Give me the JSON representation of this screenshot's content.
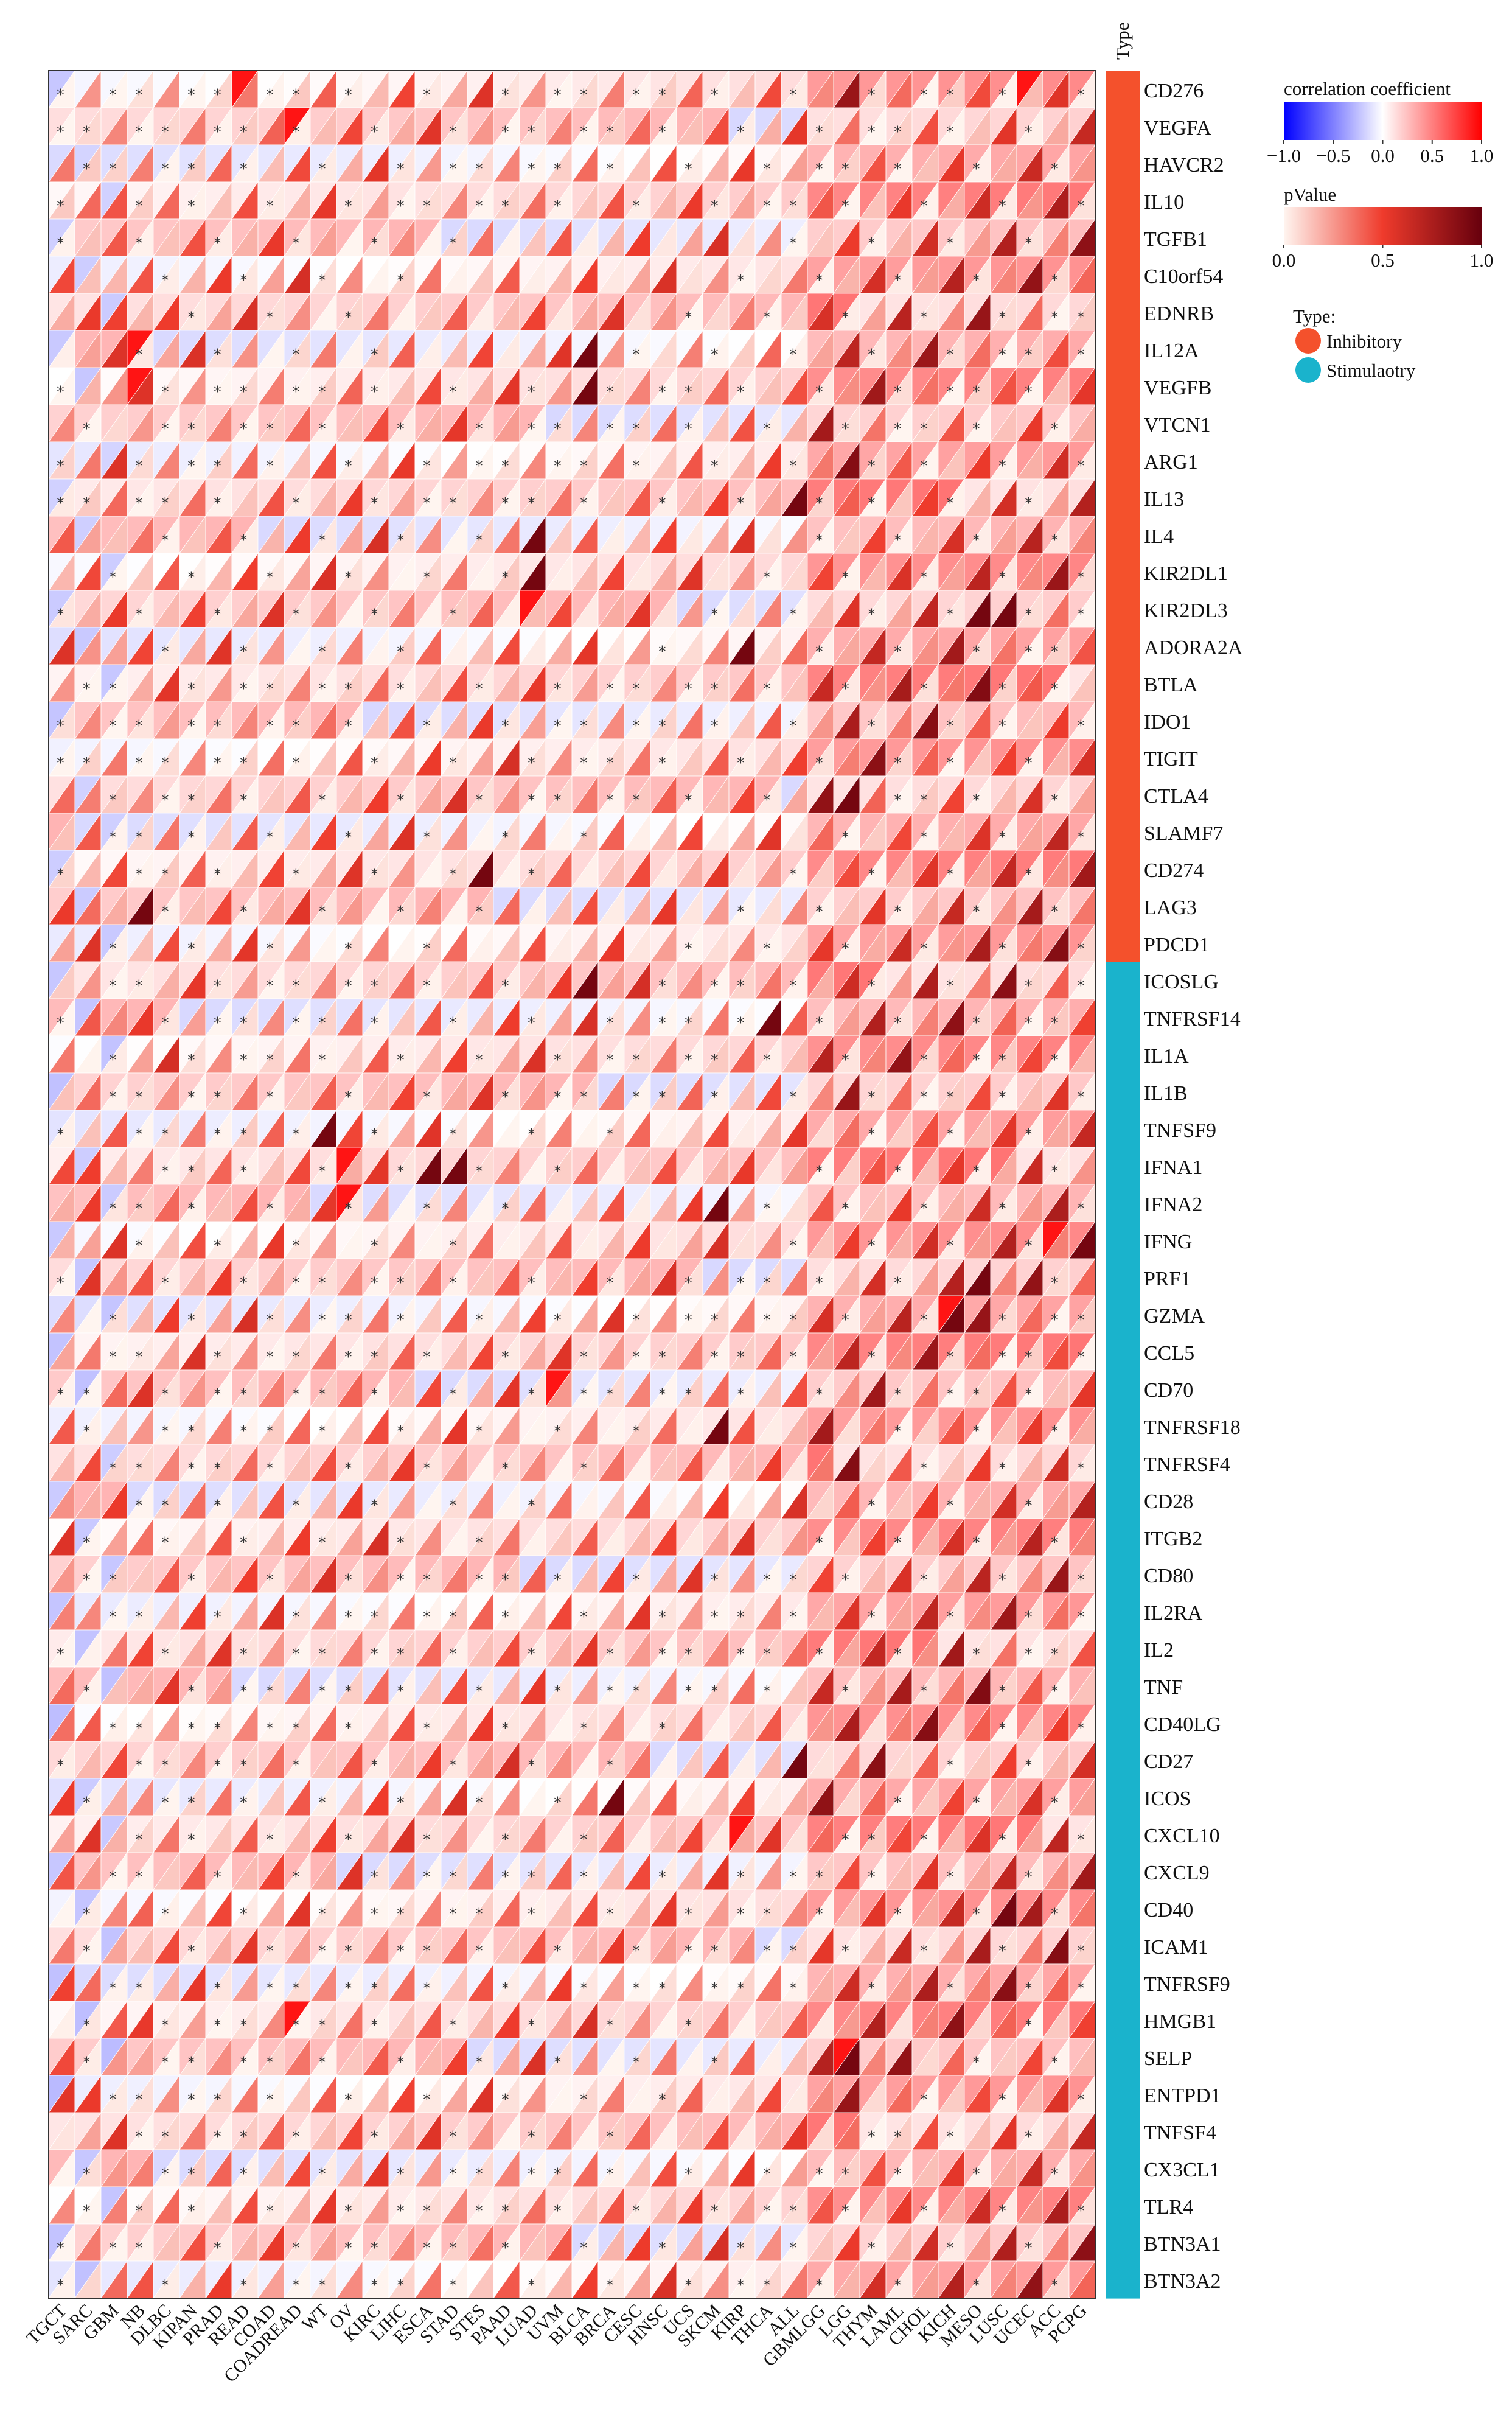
{
  "chart_data": {
    "type": "heatmap",
    "subtype": "split-triangle correlation heatmap",
    "rows": [
      "CD276",
      "VEGFA",
      "HAVCR2",
      "IL10",
      "TGFB1",
      "C10orf54",
      "EDNRB",
      "IL12A",
      "VEGFB",
      "VTCN1",
      "ARG1",
      "IL13",
      "IL4",
      "KIR2DL1",
      "KIR2DL3",
      "ADORA2A",
      "BTLA",
      "IDO1",
      "TIGIT",
      "CTLA4",
      "SLAMF7",
      "CD274",
      "LAG3",
      "PDCD1",
      "ICOSLG",
      "TNFRSF14",
      "IL1A",
      "IL1B",
      "TNFSF9",
      "IFNA1",
      "IFNA2",
      "IFNG",
      "PRF1",
      "GZMA",
      "CCL5",
      "CD70",
      "TNFRSF18",
      "TNFRSF4",
      "CD28",
      "ITGB2",
      "CD80",
      "IL2RA",
      "IL2",
      "TNF",
      "CD40LG",
      "CD27",
      "ICOS",
      "CXCL10",
      "CXCL9",
      "CD40",
      "ICAM1",
      "TNFRSF9",
      "HMGB1",
      "SELP",
      "ENTPD1",
      "TNFSF4",
      "CX3CL1",
      "TLR4",
      "BTN3A1",
      "BTN3A2"
    ],
    "row_types": [
      "Inhibitory",
      "Inhibitory",
      "Inhibitory",
      "Inhibitory",
      "Inhibitory",
      "Inhibitory",
      "Inhibitory",
      "Inhibitory",
      "Inhibitory",
      "Inhibitory",
      "Inhibitory",
      "Inhibitory",
      "Inhibitory",
      "Inhibitory",
      "Inhibitory",
      "Inhibitory",
      "Inhibitory",
      "Inhibitory",
      "Inhibitory",
      "Inhibitory",
      "Inhibitory",
      "Inhibitory",
      "Inhibitory",
      "Inhibitory",
      "Stimulaotry",
      "Stimulaotry",
      "Stimulaotry",
      "Stimulaotry",
      "Stimulaotry",
      "Stimulaotry",
      "Stimulaotry",
      "Stimulaotry",
      "Stimulaotry",
      "Stimulaotry",
      "Stimulaotry",
      "Stimulaotry",
      "Stimulaotry",
      "Stimulaotry",
      "Stimulaotry",
      "Stimulaotry",
      "Stimulaotry",
      "Stimulaotry",
      "Stimulaotry",
      "Stimulaotry",
      "Stimulaotry",
      "Stimulaotry",
      "Stimulaotry",
      "Stimulaotry",
      "Stimulaotry",
      "Stimulaotry",
      "Stimulaotry",
      "Stimulaotry",
      "Stimulaotry",
      "Stimulaotry",
      "Stimulaotry",
      "Stimulaotry",
      "Stimulaotry",
      "Stimulaotry",
      "Stimulaotry",
      "Stimulaotry"
    ],
    "columns": [
      "TGCT",
      "SARC",
      "GBM",
      "NB",
      "DLBC",
      "KIPAN",
      "PRAD",
      "READ",
      "COAD",
      "COADREAD",
      "WT",
      "OV",
      "KIRC",
      "LIHC",
      "ESCA",
      "STAD",
      "STES",
      "PAAD",
      "LUAD",
      "UVM",
      "BLCA",
      "BRCA",
      "CESC",
      "HNSC",
      "UCS",
      "SKCM",
      "KIRP",
      "THCA",
      "ALL",
      "GBMLGG",
      "LGG",
      "THYM",
      "LAML",
      "CHOL",
      "KICH",
      "MESO",
      "LUSC",
      "UCEC",
      "ACC",
      "PCPG"
    ],
    "type_header": "Type",
    "legend_correlation": {
      "title": "correlation coefficient",
      "ticks": [
        "−1.0",
        "−0.5",
        "0.0",
        "0.5",
        "1.0"
      ],
      "colors": [
        "#0000ff",
        "#ffffff",
        "#ff0000"
      ],
      "range": [
        -1,
        1
      ]
    },
    "legend_pvalue": {
      "title": "pValue",
      "ticks": [
        "0.0",
        "0.5",
        "1.0"
      ],
      "colors": [
        "#fff5f0",
        "#ef3b2c",
        "#67000d"
      ],
      "range": [
        0,
        1
      ]
    },
    "legend_type": {
      "title": "Type:",
      "items": [
        {
          "label": "Inhibitory",
          "color": "#f4512c"
        },
        {
          "label": "Stimulaotry",
          "color": "#1ab3cc"
        }
      ]
    },
    "cell_encoding": "upper-left triangle = correlation coefficient; lower-right triangle = pValue; '*' marks significance",
    "highlights": {
      "correlation_dark": [
        [
          0,
          7
        ],
        [
          1,
          9
        ],
        [
          7,
          3
        ],
        [
          8,
          3
        ],
        [
          0,
          37
        ],
        [
          14,
          18
        ],
        [
          29,
          11
        ],
        [
          30,
          11
        ],
        [
          31,
          38
        ],
        [
          33,
          34
        ],
        [
          35,
          19
        ],
        [
          47,
          26
        ],
        [
          52,
          9
        ],
        [
          53,
          30
        ]
      ],
      "pvalue_dark": [
        [
          7,
          20
        ],
        [
          8,
          20
        ],
        [
          11,
          28
        ],
        [
          12,
          18
        ],
        [
          13,
          18
        ],
        [
          14,
          35
        ],
        [
          14,
          36
        ],
        [
          15,
          26
        ],
        [
          19,
          30
        ],
        [
          21,
          16
        ],
        [
          22,
          3
        ],
        [
          24,
          20
        ],
        [
          25,
          27
        ],
        [
          28,
          10
        ],
        [
          29,
          14
        ],
        [
          29,
          15
        ],
        [
          30,
          25
        ],
        [
          31,
          39
        ],
        [
          32,
          35
        ],
        [
          33,
          34
        ],
        [
          36,
          25
        ],
        [
          45,
          28
        ],
        [
          46,
          21
        ],
        [
          49,
          36
        ],
        [
          53,
          30
        ]
      ]
    }
  }
}
